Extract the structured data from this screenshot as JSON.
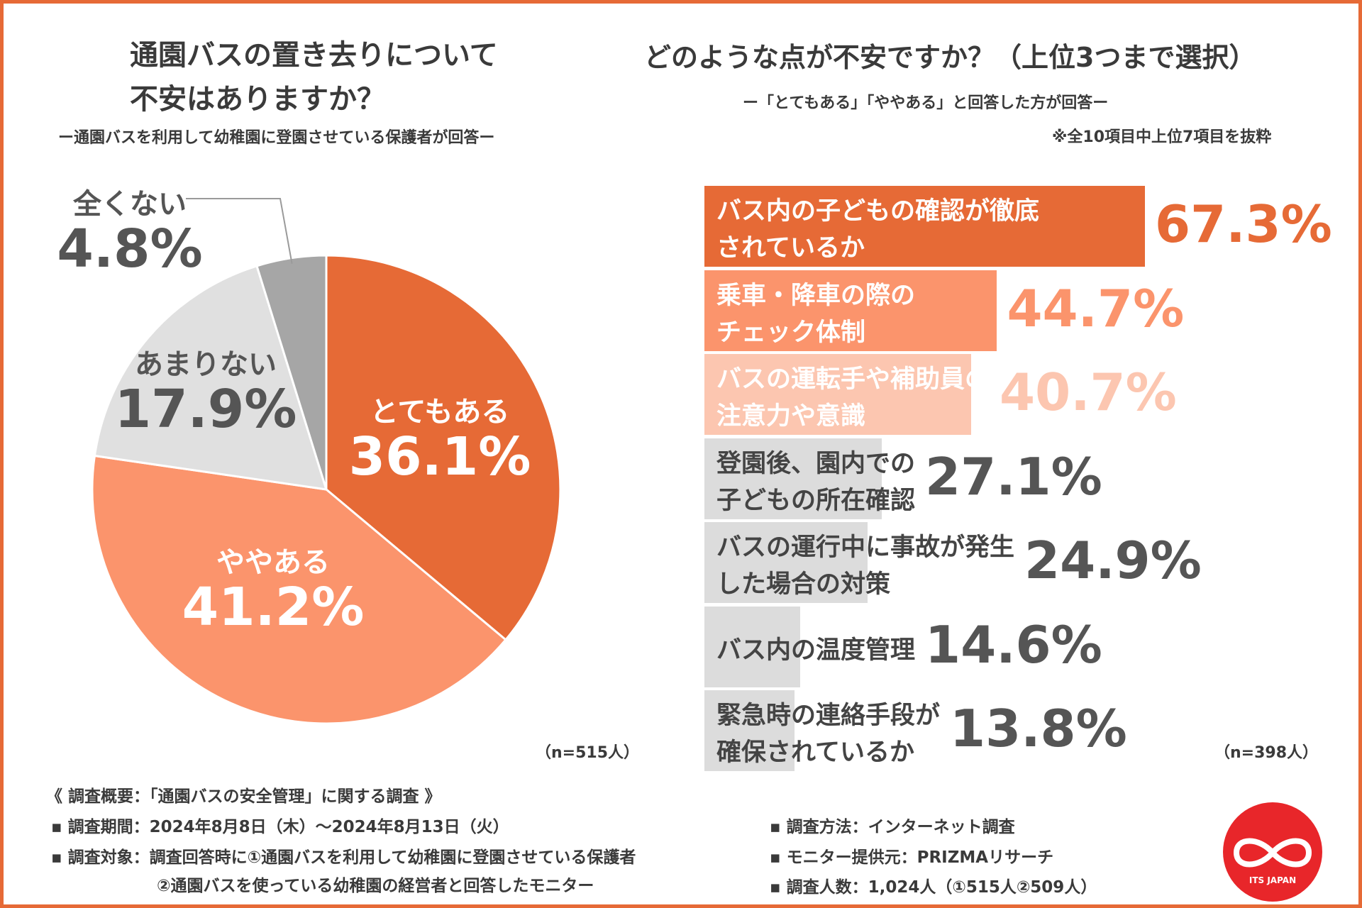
{
  "colors": {
    "accent": "#e66a36",
    "bar_shades": [
      "#e66a36",
      "#fb946c",
      "#fcc6b0",
      "#dcdcdc"
    ],
    "pie_colors": [
      "#e66a36",
      "#fb946c",
      "#e0e0e0",
      "#a6a6a6"
    ]
  },
  "left": {
    "title_line1": "通園バスの置き去りについて",
    "title_line2": "不安はありますか？",
    "subtitle": "ー通園バスを利用して幼稚園に登園させている保護者が回答ー",
    "n_label": "（n=515人）"
  },
  "right": {
    "title": "どのような点が不安ですか？（上位3つまで選択）",
    "subtitle": "ー「とてもある」「ややある」と回答した方が回答ー",
    "note": "※全10項目中上位7項目を抜粋",
    "n_label": "（n=398人）"
  },
  "chart_data": [
    {
      "type": "pie",
      "title": "通園バスの置き去りについて 不安はありますか？",
      "labels": [
        "とてもある",
        "ややある",
        "あまりない",
        "全くない"
      ],
      "values": [
        36.1,
        41.2,
        17.9,
        4.8
      ],
      "value_labels": [
        "36.1%",
        "41.2%",
        "17.9%",
        "4.8%"
      ],
      "start": "12 o'clock, clockwise"
    },
    {
      "type": "bar",
      "orientation": "horizontal",
      "title": "どのような点が不安ですか？（上位3つまで選択）",
      "categories": [
        [
          "バス内の子どもの確認が徹底",
          "されているか"
        ],
        [
          "乗車・降車の際の",
          "チェック体制"
        ],
        [
          "バスの運転手や補助員の",
          "注意力や意識"
        ],
        [
          "登園後、園内での",
          "子どもの所在確認"
        ],
        [
          "バスの運行中に事故が発生",
          "した場合の対策"
        ],
        [
          "バス内の温度管理"
        ],
        [
          "緊急時の連絡手段が",
          "確保されているか"
        ]
      ],
      "values": [
        67.3,
        44.7,
        40.7,
        27.1,
        24.9,
        14.6,
        13.8
      ],
      "value_labels": [
        "67.3%",
        "44.7%",
        "40.7%",
        "27.1%",
        "24.9%",
        "14.6%",
        "13.8%"
      ],
      "xlim": [
        0,
        100
      ]
    }
  ],
  "summary": {
    "header": "《 調査概要：「通園バスの安全管理」に関する調査 》",
    "period": "▪ 調査期間：2024年8月8日（木）～2024年8月13日（火）",
    "target1": "▪ 調査対象：調査回答時に①通園バスを利用して幼稚園に登園させている保護者",
    "target2": "②通園バスを使っている幼稚園の経営者と回答したモニター",
    "method": "▪ 調査方法：インターネット調査",
    "provider": "▪ モニター提供元：PRIZMAリサーチ",
    "count": "▪ 調査人数：1,024人（①515人②509人）"
  },
  "logo": {
    "text": "ITS JAPAN",
    "icon": "infinity-logo-icon"
  }
}
